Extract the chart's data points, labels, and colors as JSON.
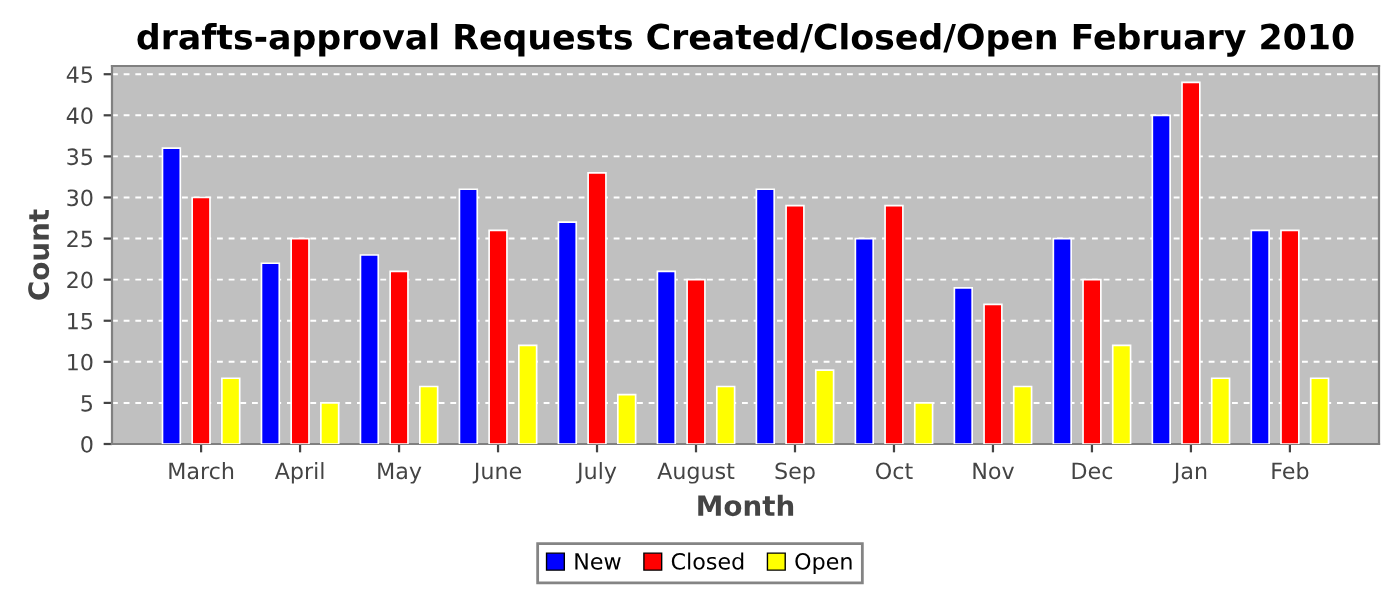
{
  "chart_data": {
    "type": "bar",
    "title": "drafts-approval Requests Created/Closed/Open February 2010",
    "xlabel": "Month",
    "ylabel": "Count",
    "categories": [
      "March",
      "April",
      "May",
      "June",
      "July",
      "August",
      "Sep",
      "Oct",
      "Nov",
      "Dec",
      "Jan",
      "Feb"
    ],
    "series": [
      {
        "name": "New",
        "color": "#0000ff",
        "values": [
          36,
          22,
          23,
          31,
          27,
          21,
          31,
          25,
          19,
          25,
          40,
          26
        ]
      },
      {
        "name": "Closed",
        "color": "#ff0000",
        "values": [
          30,
          25,
          21,
          26,
          33,
          20,
          29,
          29,
          17,
          20,
          44,
          26
        ]
      },
      {
        "name": "Open",
        "color": "#ffff00",
        "values": [
          8,
          5,
          7,
          12,
          6,
          7,
          9,
          5,
          7,
          12,
          8,
          8
        ]
      }
    ],
    "ylim": [
      0,
      46
    ],
    "yticks": [
      0,
      5,
      10,
      15,
      20,
      25,
      30,
      35,
      40,
      45
    ],
    "grid": "y",
    "legend": "bottom"
  }
}
